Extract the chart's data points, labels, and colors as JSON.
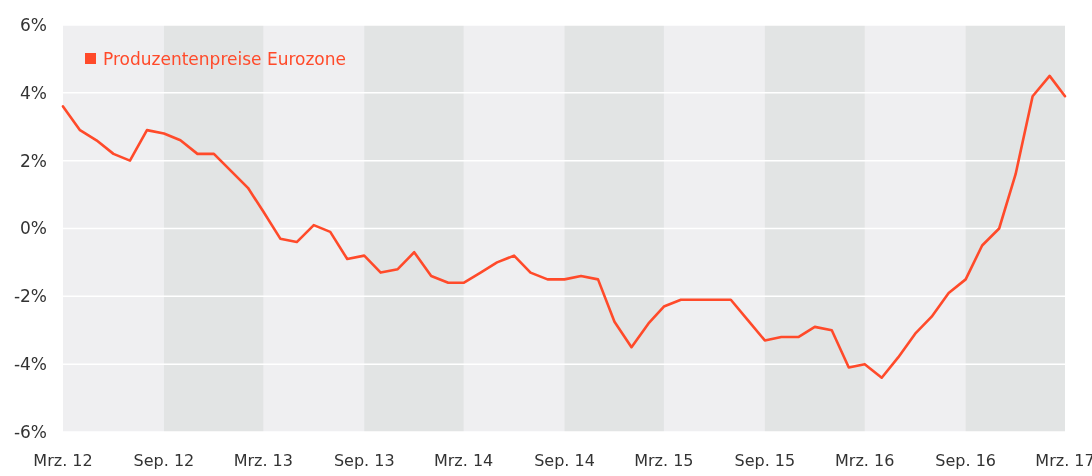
{
  "chart_data": {
    "type": "line",
    "x": [
      "2012-03",
      "2012-04",
      "2012-05",
      "2012-06",
      "2012-07",
      "2012-08",
      "2012-09",
      "2012-10",
      "2012-11",
      "2012-12",
      "2013-01",
      "2013-02",
      "2013-03",
      "2013-04",
      "2013-05",
      "2013-06",
      "2013-07",
      "2013-08",
      "2013-09",
      "2013-10",
      "2013-11",
      "2013-12",
      "2014-01",
      "2014-02",
      "2014-03",
      "2014-04",
      "2014-05",
      "2014-06",
      "2014-07",
      "2014-08",
      "2014-09",
      "2014-10",
      "2014-11",
      "2014-12",
      "2015-01",
      "2015-02",
      "2015-03",
      "2015-04",
      "2015-05",
      "2015-06",
      "2015-07",
      "2015-08",
      "2015-09",
      "2015-10",
      "2015-11",
      "2015-12",
      "2016-01",
      "2016-02",
      "2016-03",
      "2016-04",
      "2016-05",
      "2016-06",
      "2016-07",
      "2016-08",
      "2016-09",
      "2016-10",
      "2016-11",
      "2016-12",
      "2017-01",
      "2017-02",
      "2017-03"
    ],
    "series": [
      {
        "name": "Produzentenpreise Eurozone",
        "color": "#ff4a2a",
        "values": [
          3.6,
          2.9,
          2.6,
          2.2,
          2.0,
          2.9,
          2.8,
          2.6,
          2.2,
          2.2,
          1.7,
          1.2,
          0.5,
          -0.3,
          -0.4,
          0.1,
          -0.1,
          -0.9,
          -0.8,
          -1.3,
          -1.2,
          -0.7,
          -1.4,
          -1.6,
          -1.6,
          -1.3,
          -1.0,
          -0.8,
          -1.3,
          -1.5,
          -1.5,
          -1.4,
          -1.5,
          -2.75,
          -3.5,
          -2.8,
          -2.3,
          -2.1,
          -2.1,
          -2.1,
          -2.1,
          -2.7,
          -3.3,
          -3.2,
          -3.2,
          -2.9,
          -3.0,
          -4.1,
          -4.0,
          -4.4,
          -3.8,
          -3.1,
          -2.6,
          -1.9,
          -1.5,
          -0.5,
          0.0,
          1.6,
          3.9,
          4.5,
          3.9
        ]
      }
    ],
    "xlim": [
      "2012-03",
      "2017-03"
    ],
    "xticks": [
      {
        "value": "2012-03",
        "label": "Mrz. 12"
      },
      {
        "value": "2012-09",
        "label": "Sep. 12"
      },
      {
        "value": "2013-03",
        "label": "Mrz. 13"
      },
      {
        "value": "2013-09",
        "label": "Sep. 13"
      },
      {
        "value": "2014-03",
        "label": "Mrz. 14"
      },
      {
        "value": "2014-09",
        "label": "Sep. 14"
      },
      {
        "value": "2015-03",
        "label": "Mrz. 15"
      },
      {
        "value": "2015-09",
        "label": "Sep. 15"
      },
      {
        "value": "2016-03",
        "label": "Mrz. 16"
      },
      {
        "value": "2016-09",
        "label": "Sep. 16"
      },
      {
        "value": "2017-03",
        "label": "Mrz. 17"
      }
    ],
    "ylim": [
      -6,
      6
    ],
    "yticks": [
      {
        "value": -6,
        "label": "-6%"
      },
      {
        "value": -4,
        "label": "-4%"
      },
      {
        "value": -2,
        "label": "-2%"
      },
      {
        "value": 0,
        "label": "0%"
      },
      {
        "value": 2,
        "label": "2%"
      },
      {
        "value": 4,
        "label": "4%"
      },
      {
        "value": 6,
        "label": "6%"
      }
    ],
    "bands": [
      {
        "axis": "x",
        "from": "2012-09",
        "to": "2013-03",
        "color": "#e2e4e4"
      },
      {
        "axis": "x",
        "from": "2013-09",
        "to": "2014-03",
        "color": "#e2e4e4"
      },
      {
        "axis": "x",
        "from": "2014-09",
        "to": "2015-03",
        "color": "#e2e4e4"
      },
      {
        "axis": "x",
        "from": "2015-09",
        "to": "2016-03",
        "color": "#e2e4e4"
      },
      {
        "axis": "x",
        "from": "2016-09",
        "to": "2017-03",
        "color": "#e2e4e4"
      }
    ],
    "grid": "y",
    "legend": "top left",
    "marker": "none",
    "line_style": "solid"
  }
}
